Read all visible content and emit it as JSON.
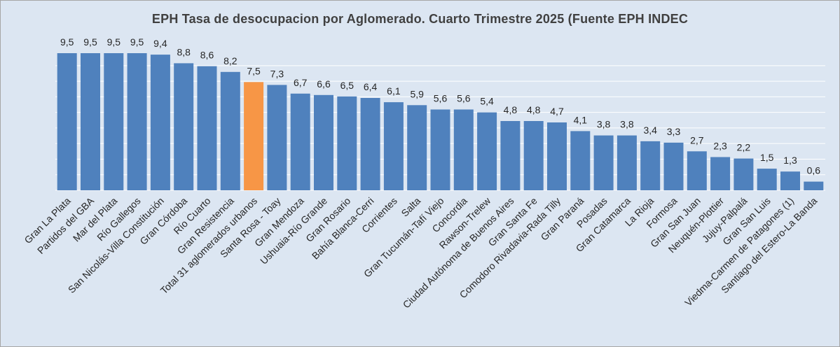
{
  "chart_data": {
    "type": "bar",
    "title": "EPH Tasa de desocupacion por Aglomerado. Cuarto Trimestre 2025 (Fuente EPH INDEC",
    "categories": [
      "Gran La Plata",
      "Partidos del GBA",
      "Mar del Plata",
      "Río Gallegos",
      "San Nicolás-Villa Constitución",
      "Gran Córdoba",
      "Río Cuarto",
      "Gran Resistencia",
      "Total 31 aglomerados urbanos",
      "Santa Rosa - Toay",
      "Gran Mendoza",
      "Ushuaia-Río Grande",
      "Gran Rosario",
      "Bahía Blanca-Cerri",
      "Corrientes",
      "Salta",
      "Gran Tucumán-Tafí Viejo",
      "Concordia",
      "Rawson-Trelew",
      "Ciudad Autónoma de Buenos Aires",
      "Gran Santa Fe",
      "Comodoro Rivadavia-Rada Tilly",
      "Gran Paraná",
      "Posadas",
      "Gran Catamarca",
      "La Rioja",
      "Formosa",
      "Gran San Juan",
      "Neuquén-Plottier",
      "Jujuy-Palpalá",
      "Gran San Luis",
      "Viedma-Carmen de Patagones (1)",
      "Santiago del Estero-La Banda"
    ],
    "values": [
      9.5,
      9.5,
      9.5,
      9.5,
      9.4,
      8.8,
      8.6,
      8.2,
      7.5,
      7.3,
      6.7,
      6.6,
      6.5,
      6.4,
      6.1,
      5.9,
      5.6,
      5.6,
      5.4,
      4.8,
      4.8,
      4.7,
      4.1,
      3.8,
      3.8,
      3.4,
      3.3,
      2.7,
      2.3,
      2.2,
      1.5,
      1.3,
      0.6
    ],
    "value_labels": [
      "9,5",
      "9,5",
      "9,5",
      "9,5",
      "9,4",
      "8,8",
      "8,6",
      "8,2",
      "7,5",
      "7,3",
      "6,7",
      "6,6",
      "6,5",
      "6,4",
      "6,1",
      "5,9",
      "5,6",
      "5,6",
      "5,4",
      "4,8",
      "4,8",
      "4,7",
      "4,1",
      "3,8",
      "3,8",
      "3,4",
      "3,3",
      "2,7",
      "2,3",
      "2,2",
      "1,5",
      "1,3",
      "0,6"
    ],
    "highlight_category": "Total 31 aglomerados urbanos",
    "colors": {
      "bar": "#4f81bd",
      "highlight": "#f79646",
      "background": "#dce6f2",
      "gridline": "#ffffff"
    },
    "ylim": [
      0,
      9.5
    ],
    "grid": true,
    "xlabel": "",
    "ylabel": ""
  }
}
